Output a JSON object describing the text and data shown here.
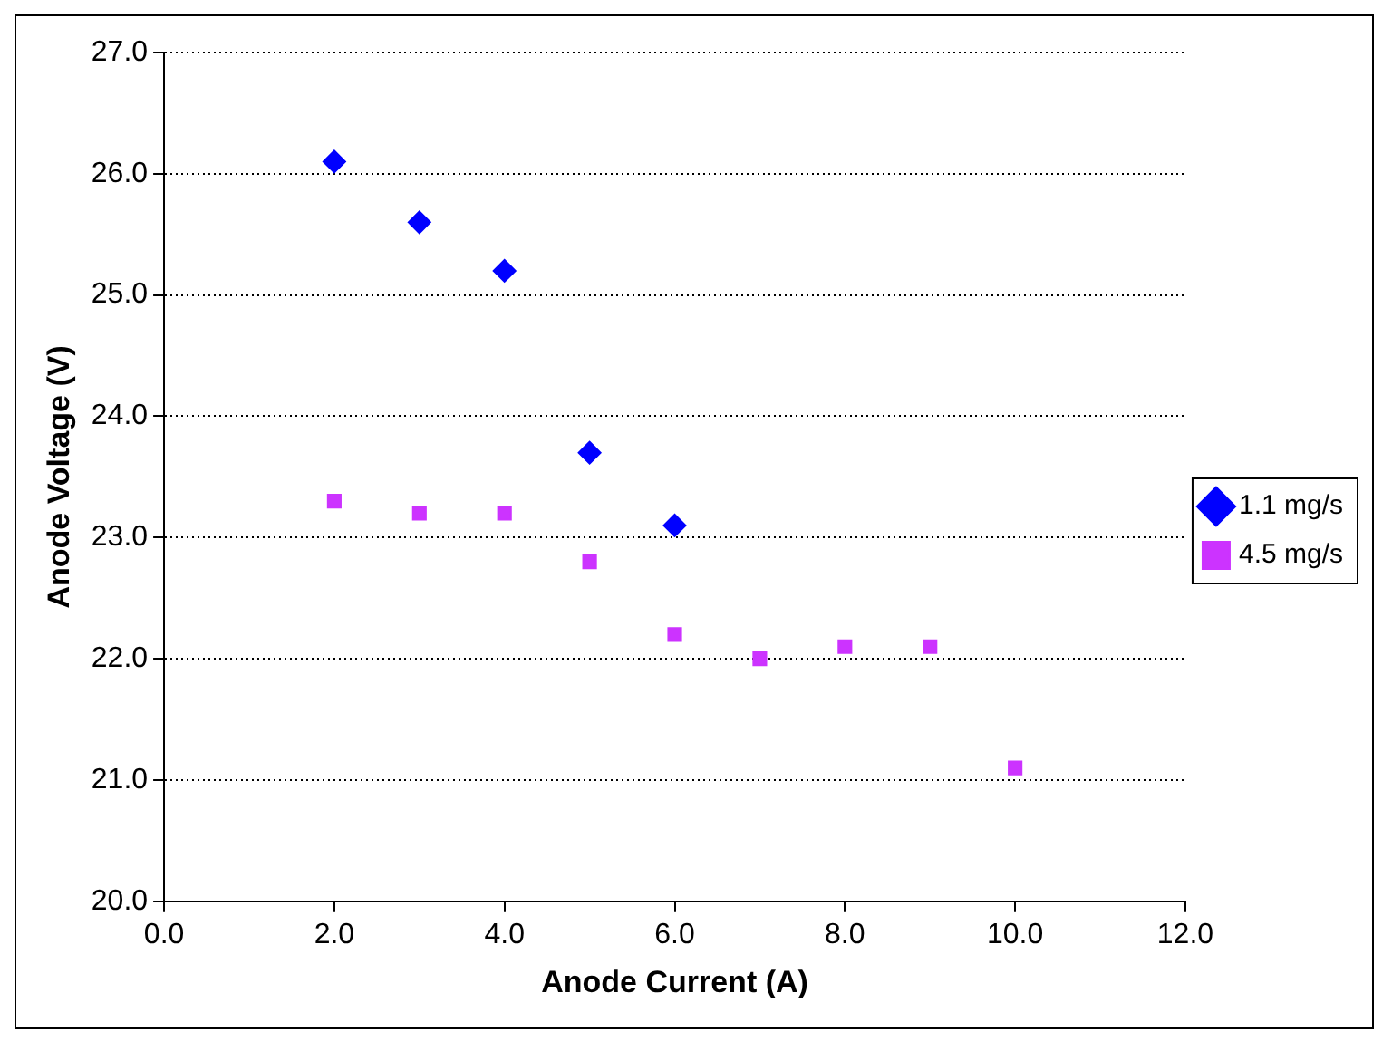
{
  "chart_data": {
    "type": "scatter",
    "xlabel": "Anode Current (A)",
    "ylabel": "Anode Voltage (V)",
    "xlim": [
      0,
      12
    ],
    "xticks": [
      {
        "value": 0,
        "label": "0.0"
      },
      {
        "value": 2,
        "label": "2.0"
      },
      {
        "value": 4,
        "label": "4.0"
      },
      {
        "value": 6,
        "label": "6.0"
      },
      {
        "value": 8,
        "label": "8.0"
      },
      {
        "value": 10,
        "label": "10.0"
      },
      {
        "value": 12,
        "label": "12.0"
      }
    ],
    "ylim": [
      20,
      27
    ],
    "yticks": [
      {
        "value": 20,
        "label": "20.0"
      },
      {
        "value": 21,
        "label": "21.0"
      },
      {
        "value": 22,
        "label": "22.0"
      },
      {
        "value": 23,
        "label": "23.0"
      },
      {
        "value": 24,
        "label": "24.0"
      },
      {
        "value": 25,
        "label": "25.0"
      },
      {
        "value": 26,
        "label": "26.0"
      },
      {
        "value": 27,
        "label": "27.0"
      }
    ],
    "grid": "y",
    "legend": "right",
    "series": [
      {
        "name": "1.1 mg/s",
        "color": "#0000ff",
        "marker": "diamond",
        "x": [
          2,
          3,
          4,
          5,
          6
        ],
        "values": [
          26.1,
          25.6,
          25.2,
          23.7,
          23.1
        ]
      },
      {
        "name": "4.5 mg/s",
        "color": "#cc33ff",
        "marker": "square",
        "x": [
          2,
          3,
          4,
          5,
          6,
          7,
          8,
          9,
          10
        ],
        "values": [
          23.3,
          23.2,
          23.2,
          22.8,
          22.2,
          22.0,
          22.1,
          22.1,
          21.1
        ]
      }
    ]
  }
}
